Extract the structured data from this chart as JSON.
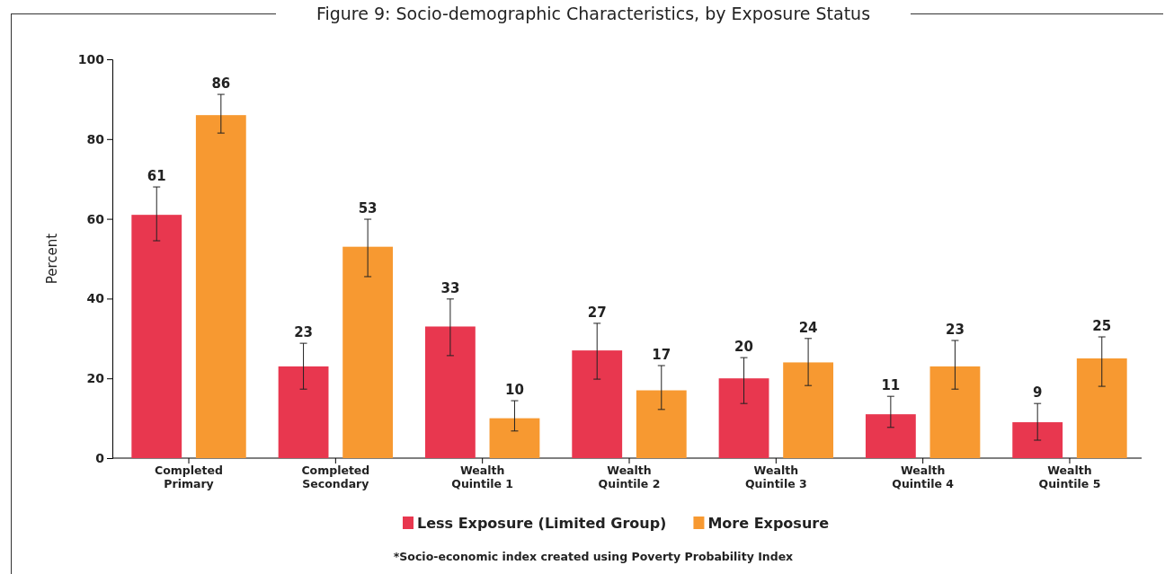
{
  "chart_data": {
    "type": "bar",
    "title": "Figure 9: Socio-demographic Characteristics, by Exposure Status",
    "ylabel": "Percent",
    "categories": [
      "Completed Primary",
      "Completed Secondary",
      "Wealth Quintile 1",
      "Wealth Quintile 2",
      "Wealth Quintile 3",
      "Wealth Quintile 4",
      "Wealth Quintile 5"
    ],
    "series": [
      {
        "name": "Less Exposure (Limited Group)",
        "color": "#e8374f",
        "values": [
          61,
          23,
          33,
          27,
          20,
          11,
          9
        ],
        "errors": [
          [
            54.5,
            68
          ],
          [
            17.3,
            28.8
          ],
          [
            25.7,
            39.9
          ],
          [
            19.8,
            33.8
          ],
          [
            13.7,
            25.2
          ],
          [
            7.7,
            15.5
          ],
          [
            4.5,
            13.7
          ]
        ]
      },
      {
        "name": "More Exposure",
        "color": "#f79931",
        "values": [
          86,
          53,
          10,
          17,
          24,
          23,
          25
        ],
        "errors": [
          [
            81.5,
            91.2
          ],
          [
            45.5,
            59.9
          ],
          [
            6.8,
            14.4
          ],
          [
            12.2,
            23.2
          ],
          [
            18.2,
            30
          ],
          [
            17.3,
            29.5
          ],
          [
            18,
            30.4
          ]
        ]
      }
    ],
    "ylim": [
      0,
      100
    ],
    "yticks": [
      0,
      20,
      40,
      60,
      80,
      100
    ],
    "grid": false,
    "legend": "bottom",
    "data_labels": true,
    "annotations": [
      "*Socio-economic index created using Poverty Probability Index"
    ]
  }
}
